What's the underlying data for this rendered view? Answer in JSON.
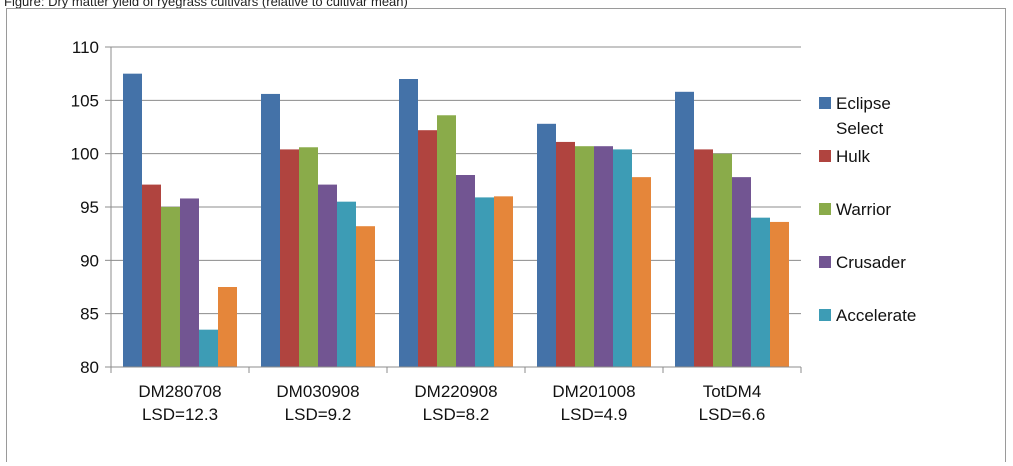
{
  "caption": "Figure: Dry matter yield of ryegrass cultivars (relative to cultivar mean)",
  "chart_data": {
    "type": "bar",
    "categories": [
      [
        "DM280708",
        "LSD=12.3"
      ],
      [
        "DM030908",
        "LSD=9.2"
      ],
      [
        "DM220908",
        "LSD=8.2"
      ],
      [
        "DM201008",
        "LSD=4.9"
      ],
      [
        "TotDM4",
        "LSD=6.6"
      ]
    ],
    "series": [
      {
        "name": [
          "Eclipse",
          "Select"
        ],
        "color": "#4472a8",
        "values": [
          107.5,
          105.6,
          107.0,
          102.8,
          105.8
        ]
      },
      {
        "name": [
          "Hulk"
        ],
        "color": "#b0443f",
        "values": [
          97.1,
          100.4,
          102.2,
          101.1,
          100.4
        ]
      },
      {
        "name": [
          "Warrior"
        ],
        "color": "#8aab4a",
        "values": [
          95.0,
          100.6,
          103.6,
          100.7,
          100.0
        ]
      },
      {
        "name": [
          "Crusader"
        ],
        "color": "#725592",
        "values": [
          95.8,
          97.1,
          98.0,
          100.7,
          97.8
        ]
      },
      {
        "name": [
          "Accelerate"
        ],
        "color": "#3d9cb5",
        "values": [
          83.5,
          95.5,
          95.9,
          100.4,
          94.0
        ]
      },
      {
        "name": [],
        "color": "#e5863a",
        "values": [
          87.5,
          93.2,
          96.0,
          97.8,
          93.6
        ]
      }
    ],
    "ylim": [
      80,
      110
    ],
    "yticks": [
      80,
      85,
      90,
      95,
      100,
      105,
      110
    ],
    "grid": true,
    "legend_position": "right"
  }
}
